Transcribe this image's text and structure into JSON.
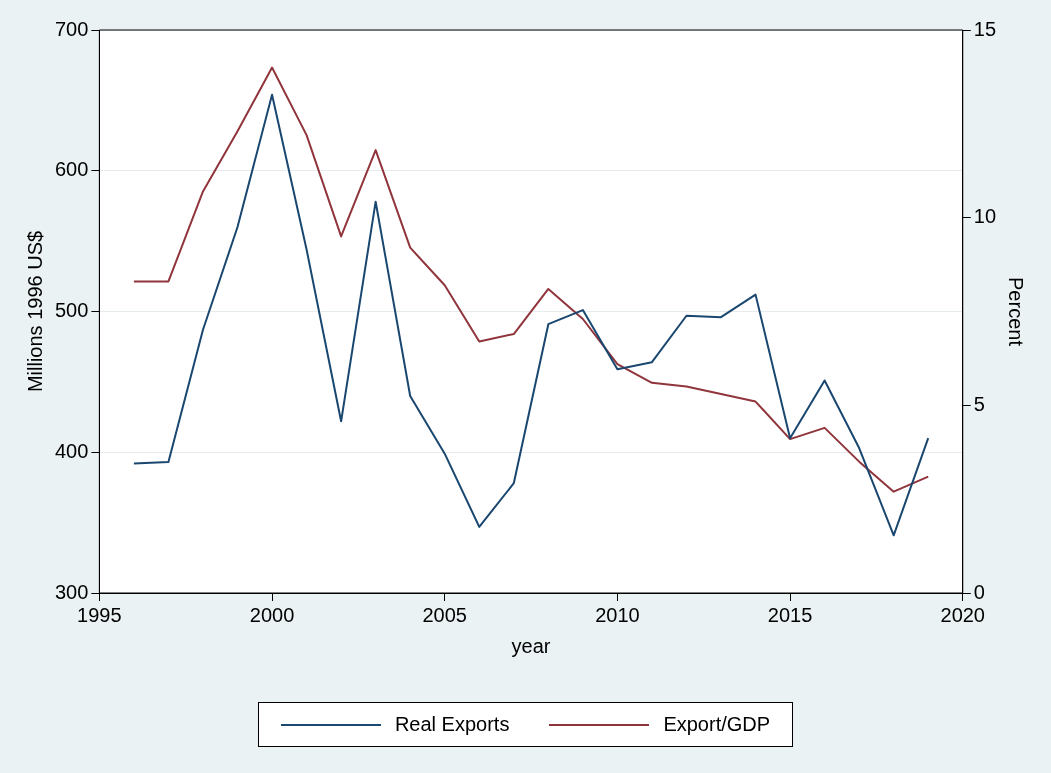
{
  "chart_data": {
    "type": "line",
    "xlabel": "year",
    "ylabel": "Millions 1996 US$",
    "y2label": "Percent",
    "x": [
      1996,
      1997,
      1998,
      1999,
      2000,
      2001,
      2002,
      2003,
      2004,
      2005,
      2006,
      2007,
      2008,
      2009,
      2010,
      2011,
      2012,
      2013,
      2014,
      2015,
      2016,
      2017,
      2018,
      2019
    ],
    "series": [
      {
        "name": "Real Exports",
        "color": "#1a476f",
        "values": [
          392,
          393,
          487,
          560,
          654,
          544,
          422,
          578,
          440,
          399,
          347,
          378,
          491,
          501,
          459,
          464,
          497,
          496,
          512,
          410,
          451,
          403,
          341,
          410
        ]
      },
      {
        "name": "Export/GDP",
        "color": "#90353b",
        "axis": "y2",
        "values": [
          8.3,
          8.3,
          10.7,
          12.3,
          14.0,
          12.2,
          9.5,
          11.8,
          9.2,
          8.2,
          6.7,
          6.9,
          8.1,
          7.3,
          6.1,
          5.6,
          5.5,
          5.3,
          5.1,
          4.1,
          4.4,
          3.5,
          2.7,
          3.1
        ]
      }
    ],
    "xlim": [
      1995,
      2020
    ],
    "xticks": [
      1995,
      2000,
      2005,
      2010,
      2015,
      2020
    ],
    "ylim": [
      300,
      700
    ],
    "yticks": [
      300,
      400,
      500,
      600,
      700
    ],
    "y2lim": [
      0,
      15
    ],
    "y2ticks": [
      0,
      5,
      10,
      15
    ],
    "grid": "y",
    "legend": "bottom",
    "marker": "none",
    "line_style": "solid"
  }
}
